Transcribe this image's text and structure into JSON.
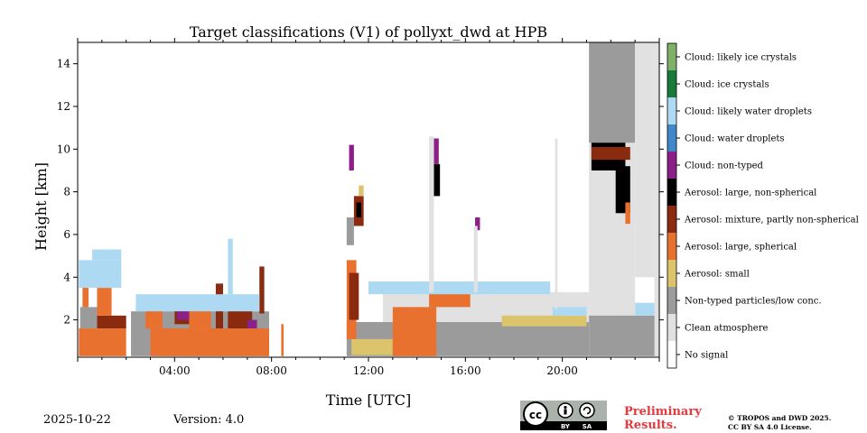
{
  "chart_data": {
    "type": "heatmap",
    "title": "Target classifications (V1) of pollyxt_dwd at HPB",
    "xlabel": "Time [UTC]",
    "ylabel": "Height [km]",
    "xlim": [
      0,
      24
    ],
    "ylim": [
      0.25,
      15
    ],
    "x_ticks": [
      {
        "value": 4,
        "label": "04:00"
      },
      {
        "value": 8,
        "label": "08:00"
      },
      {
        "value": 12,
        "label": "12:00"
      },
      {
        "value": 16,
        "label": "16:00"
      },
      {
        "value": 20,
        "label": "20:00"
      }
    ],
    "y_ticks": [
      {
        "value": 2,
        "label": "2"
      },
      {
        "value": 4,
        "label": "4"
      },
      {
        "value": 6,
        "label": "6"
      },
      {
        "value": 8,
        "label": "8"
      },
      {
        "value": 10,
        "label": "10"
      },
      {
        "value": 12,
        "label": "12"
      },
      {
        "value": 14,
        "label": "14"
      }
    ],
    "classes": [
      {
        "label": "No signal",
        "color": "#ffffff"
      },
      {
        "label": "Clean atmosphere",
        "color": "#e1e1e1"
      },
      {
        "label": "Non-typed particles/low conc.",
        "color": "#9b9b9b"
      },
      {
        "label": "Aerosol: small",
        "color": "#dcc46c"
      },
      {
        "label": "Aerosol: large, spherical",
        "color": "#e8712f"
      },
      {
        "label": "Aerosol: mixture, partly non-spherical",
        "color": "#8a2a0e"
      },
      {
        "label": "Aerosol: large, non-spherical",
        "color": "#000000"
      },
      {
        "label": "Cloud: non-typed",
        "color": "#8b2089"
      },
      {
        "label": "Cloud: water droplets",
        "color": "#4088c8"
      },
      {
        "label": "Cloud: likely water droplets",
        "color": "#aed9f3"
      },
      {
        "label": "Cloud: ice crystals",
        "color": "#1a7a3a"
      },
      {
        "label": "Cloud: likely ice crystals",
        "color": "#7fb068"
      }
    ],
    "regions": [
      {
        "cls": 4,
        "x0": 0.05,
        "x1": 2.0,
        "y0": 0.3,
        "y1": 1.6
      },
      {
        "cls": 2,
        "x0": 0.1,
        "x1": 0.8,
        "y0": 1.6,
        "y1": 2.6
      },
      {
        "cls": 4,
        "x0": 0.2,
        "x1": 0.45,
        "y0": 2.6,
        "y1": 4.1
      },
      {
        "cls": 5,
        "x0": 0.8,
        "x1": 2.0,
        "y0": 1.6,
        "y1": 2.2
      },
      {
        "cls": 4,
        "x0": 0.8,
        "x1": 1.4,
        "y0": 2.2,
        "y1": 3.5
      },
      {
        "cls": 9,
        "x0": 0.05,
        "x1": 1.8,
        "y0": 3.5,
        "y1": 4.8
      },
      {
        "cls": 9,
        "x0": 0.6,
        "x1": 1.8,
        "y0": 4.8,
        "y1": 5.3
      },
      {
        "cls": 2,
        "x0": 2.2,
        "x1": 7.9,
        "y0": 0.3,
        "y1": 2.4
      },
      {
        "cls": 4,
        "x0": 3.0,
        "x1": 7.9,
        "y0": 0.3,
        "y1": 1.6
      },
      {
        "cls": 4,
        "x0": 2.8,
        "x1": 3.5,
        "y0": 1.6,
        "y1": 2.9
      },
      {
        "cls": 5,
        "x0": 4.0,
        "x1": 4.6,
        "y0": 1.8,
        "y1": 2.6
      },
      {
        "cls": 7,
        "x0": 4.1,
        "x1": 4.6,
        "y0": 2.0,
        "y1": 2.4
      },
      {
        "cls": 4,
        "x0": 4.6,
        "x1": 5.5,
        "y0": 1.6,
        "y1": 2.6
      },
      {
        "cls": 5,
        "x0": 5.7,
        "x1": 6.0,
        "y0": 1.6,
        "y1": 3.7
      },
      {
        "cls": 5,
        "x0": 6.2,
        "x1": 7.2,
        "y0": 1.6,
        "y1": 2.4
      },
      {
        "cls": 7,
        "x0": 7.0,
        "x1": 7.4,
        "y0": 1.6,
        "y1": 2.0
      },
      {
        "cls": 5,
        "x0": 7.5,
        "x1": 7.7,
        "y0": 2.3,
        "y1": 4.5
      },
      {
        "cls": 9,
        "x0": 2.4,
        "x1": 7.5,
        "y0": 2.4,
        "y1": 3.2
      },
      {
        "cls": 9,
        "x0": 6.2,
        "x1": 6.4,
        "y0": 3.2,
        "y1": 5.8
      },
      {
        "cls": 4,
        "x0": 8.4,
        "x1": 8.5,
        "y0": 0.3,
        "y1": 1.8
      },
      {
        "cls": 2,
        "x0": 11.1,
        "x1": 21.1,
        "y0": 0.3,
        "y1": 1.9
      },
      {
        "cls": 1,
        "x0": 12.6,
        "x1": 21.1,
        "y0": 1.9,
        "y1": 3.3
      },
      {
        "cls": 3,
        "x0": 11.3,
        "x1": 13.0,
        "y0": 0.35,
        "y1": 1.1
      },
      {
        "cls": 4,
        "x0": 11.1,
        "x1": 11.5,
        "y0": 1.1,
        "y1": 4.8
      },
      {
        "cls": 5,
        "x0": 11.2,
        "x1": 11.6,
        "y0": 2.0,
        "y1": 4.2
      },
      {
        "cls": 4,
        "x0": 13.0,
        "x1": 14.8,
        "y0": 0.3,
        "y1": 2.6
      },
      {
        "cls": 4,
        "x0": 14.5,
        "x1": 16.2,
        "y0": 2.6,
        "y1": 3.3
      },
      {
        "cls": 9,
        "x0": 12.0,
        "x1": 19.5,
        "y0": 3.2,
        "y1": 3.8
      },
      {
        "cls": 3,
        "x0": 17.5,
        "x1": 21.0,
        "y0": 1.7,
        "y1": 2.2
      },
      {
        "cls": 9,
        "x0": 19.6,
        "x1": 21.0,
        "y0": 2.2,
        "y1": 2.6
      },
      {
        "cls": 2,
        "x0": 11.1,
        "x1": 11.4,
        "y0": 5.5,
        "y1": 6.8
      },
      {
        "cls": 5,
        "x0": 11.4,
        "x1": 11.8,
        "y0": 6.4,
        "y1": 7.8
      },
      {
        "cls": 6,
        "x0": 11.5,
        "x1": 11.7,
        "y0": 6.8,
        "y1": 7.5
      },
      {
        "cls": 3,
        "x0": 11.6,
        "x1": 11.8,
        "y0": 7.8,
        "y1": 8.3
      },
      {
        "cls": 7,
        "x0": 11.2,
        "x1": 11.4,
        "y0": 9.0,
        "y1": 10.2
      },
      {
        "cls": 6,
        "x0": 14.7,
        "x1": 14.95,
        "y0": 7.8,
        "y1": 9.3
      },
      {
        "cls": 7,
        "x0": 14.7,
        "x1": 14.9,
        "y0": 9.3,
        "y1": 10.5
      },
      {
        "cls": 1,
        "x0": 14.5,
        "x1": 14.7,
        "y0": 3.3,
        "y1": 10.6
      },
      {
        "cls": 7,
        "x0": 16.4,
        "x1": 16.6,
        "y0": 6.2,
        "y1": 6.8
      },
      {
        "cls": 1,
        "x0": 16.35,
        "x1": 16.5,
        "y0": 3.3,
        "y1": 6.4
      },
      {
        "cls": 1,
        "x0": 19.7,
        "x1": 19.8,
        "y0": 2.5,
        "y1": 10.5
      },
      {
        "cls": 1,
        "x0": 21.1,
        "x1": 23.0,
        "y0": 0.3,
        "y1": 15.0
      },
      {
        "cls": 2,
        "x0": 21.1,
        "x1": 23.0,
        "y0": 10.3,
        "y1": 15.0
      },
      {
        "cls": 2,
        "x0": 21.1,
        "x1": 24.0,
        "y0": 0.3,
        "y1": 2.2
      },
      {
        "cls": 6,
        "x0": 21.2,
        "x1": 22.6,
        "y0": 9.0,
        "y1": 10.3
      },
      {
        "cls": 6,
        "x0": 22.2,
        "x1": 22.8,
        "y0": 7.0,
        "y1": 9.2
      },
      {
        "cls": 5,
        "x0": 21.2,
        "x1": 22.8,
        "y0": 9.5,
        "y1": 10.1
      },
      {
        "cls": 4,
        "x0": 22.6,
        "x1": 22.8,
        "y0": 6.5,
        "y1": 7.5
      },
      {
        "cls": 1,
        "x0": 23.0,
        "x1": 23.8,
        "y0": 4.0,
        "y1": 15.0
      },
      {
        "cls": 1,
        "x0": 23.8,
        "x1": 24.0,
        "y0": 0.3,
        "y1": 15.0
      },
      {
        "cls": 9,
        "x0": 23.0,
        "x1": 23.8,
        "y0": 2.2,
        "y1": 2.8
      }
    ]
  },
  "footer": {
    "date": "2025-10-22",
    "version": "Version: 4.0",
    "prelim_line1": "Preliminary",
    "prelim_line2": "Results.",
    "copyright_line1": "© TROPOS and DWD 2025.",
    "copyright_line2": "CC BY SA 4.0 License.",
    "license_by": "BY",
    "license_sa": "SA"
  }
}
